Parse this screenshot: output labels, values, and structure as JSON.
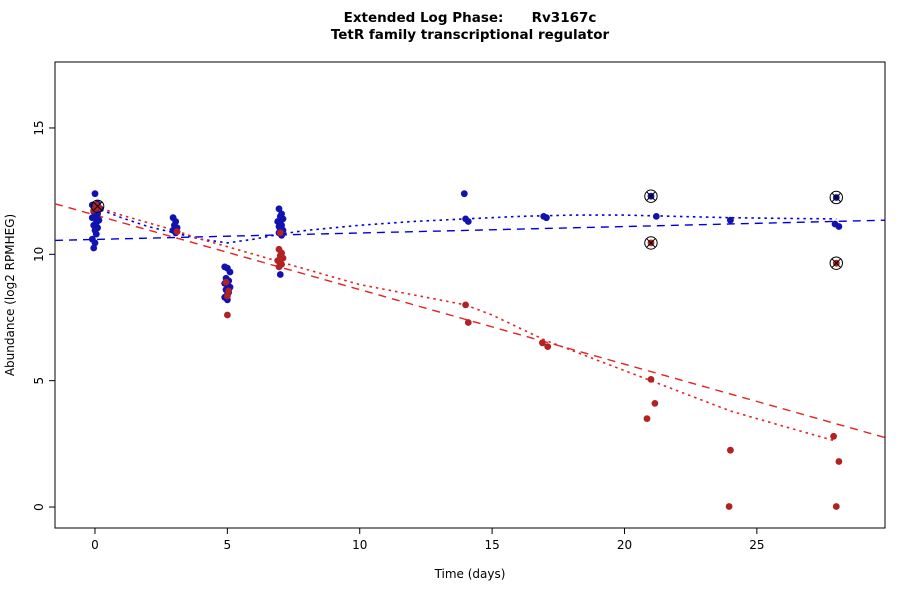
{
  "title_line1": "Extended Log Phase:      Rv3167c",
  "title_line2": "TetR family transcriptional regulator",
  "chart_data": {
    "type": "scatter",
    "title": "Extended Log Phase: Rv3167c",
    "subtitle": "TetR family transcriptional regulator",
    "xlabel": "Time  (days)",
    "ylabel": "Abundance  (log2 RPMHEG)",
    "x_ticks": [
      0,
      5,
      10,
      15,
      20,
      25
    ],
    "y_ticks": [
      0,
      5,
      10,
      15
    ],
    "x_range": [
      -1.51,
      29.84
    ],
    "y_range": [
      -0.83,
      17.61
    ],
    "grid": false,
    "legend": "none",
    "colors": {
      "blue_points": "#1212b0",
      "red_points": "#b22222",
      "blue_line": "#0000dd",
      "red_line": "#e32222"
    },
    "series": [
      {
        "name": "blue-series",
        "color": "#1212b0",
        "points": [
          [
            0.0,
            12.4
          ],
          [
            0.1,
            12.0
          ],
          [
            -0.1,
            11.95
          ],
          [
            0.05,
            11.85
          ],
          [
            0.2,
            11.8
          ],
          [
            -0.05,
            11.7
          ],
          [
            0.1,
            11.6
          ],
          [
            0.0,
            11.5
          ],
          [
            -0.1,
            11.45
          ],
          [
            0.15,
            11.35
          ],
          [
            0.05,
            11.25
          ],
          [
            -0.05,
            11.15
          ],
          [
            0.1,
            11.05
          ],
          [
            0.0,
            10.95
          ],
          [
            0.05,
            10.8
          ],
          [
            -0.1,
            10.6
          ],
          [
            0.0,
            10.45
          ],
          [
            -0.05,
            10.25
          ],
          [
            2.95,
            11.45
          ],
          [
            3.05,
            11.3
          ],
          [
            3.0,
            11.15
          ],
          [
            3.1,
            11.05
          ],
          [
            2.95,
            10.95
          ],
          [
            3.05,
            10.85
          ],
          [
            4.9,
            9.5
          ],
          [
            5.0,
            9.45
          ],
          [
            5.1,
            9.3
          ],
          [
            4.95,
            9.05
          ],
          [
            5.05,
            8.95
          ],
          [
            4.9,
            8.85
          ],
          [
            5.0,
            8.8
          ],
          [
            5.1,
            8.7
          ],
          [
            4.95,
            8.6
          ],
          [
            5.05,
            8.5
          ],
          [
            5.0,
            8.4
          ],
          [
            4.9,
            8.3
          ],
          [
            5.0,
            8.2
          ],
          [
            6.95,
            11.8
          ],
          [
            7.05,
            11.6
          ],
          [
            7.0,
            11.5
          ],
          [
            7.1,
            11.4
          ],
          [
            6.9,
            11.3
          ],
          [
            7.0,
            11.25
          ],
          [
            7.05,
            11.15
          ],
          [
            6.95,
            11.1
          ],
          [
            7.0,
            11.0
          ],
          [
            7.1,
            10.95
          ],
          [
            6.95,
            10.85
          ],
          [
            7.05,
            10.75
          ],
          [
            7.0,
            9.2
          ],
          [
            13.95,
            12.4
          ],
          [
            14.0,
            11.4
          ],
          [
            14.1,
            11.3
          ],
          [
            16.95,
            11.5
          ],
          [
            17.05,
            11.45
          ],
          [
            21.0,
            12.3
          ],
          [
            21.2,
            11.5
          ],
          [
            24.0,
            11.35
          ],
          [
            28.0,
            12.25
          ],
          [
            27.95,
            11.2
          ],
          [
            28.1,
            11.1
          ]
        ]
      },
      {
        "name": "red-series",
        "color": "#b22222",
        "points": [
          [
            0.05,
            11.95
          ],
          [
            0.15,
            11.85
          ],
          [
            -0.05,
            11.75
          ],
          [
            0.1,
            11.9
          ],
          [
            3.1,
            10.9
          ],
          [
            4.95,
            8.9
          ],
          [
            5.05,
            8.55
          ],
          [
            5.0,
            8.35
          ],
          [
            5.0,
            7.6
          ],
          [
            7.0,
            10.85
          ],
          [
            6.95,
            10.2
          ],
          [
            7.05,
            10.05
          ],
          [
            7.0,
            9.95
          ],
          [
            7.1,
            9.85
          ],
          [
            6.9,
            9.75
          ],
          [
            7.0,
            9.65
          ],
          [
            7.05,
            9.6
          ],
          [
            6.95,
            9.5
          ],
          [
            14.0,
            8.0
          ],
          [
            14.1,
            7.3
          ],
          [
            16.9,
            6.5
          ],
          [
            17.1,
            6.35
          ],
          [
            21.0,
            5.05
          ],
          [
            21.15,
            4.1
          ],
          [
            20.85,
            3.5
          ],
          [
            21.0,
            10.45
          ],
          [
            24.0,
            2.25
          ],
          [
            23.95,
            0.02
          ],
          [
            28.0,
            9.65
          ],
          [
            27.9,
            2.8
          ],
          [
            28.1,
            1.8
          ],
          [
            28.0,
            0.02
          ]
        ]
      }
    ],
    "circled_points": [
      [
        0.1,
        11.9
      ],
      [
        21.0,
        12.3
      ],
      [
        21.0,
        10.45
      ],
      [
        28.0,
        12.25
      ],
      [
        28.0,
        9.65
      ]
    ],
    "lines": [
      {
        "name": "red-lm-dashed",
        "style": "dashed",
        "color": "#e32222",
        "from": [
          -1.51,
          12.0
        ],
        "to": [
          29.84,
          2.75
        ]
      },
      {
        "name": "blue-lm-dashed",
        "style": "dashed",
        "color": "#0000dd",
        "from": [
          -1.51,
          10.55
        ],
        "to": [
          29.84,
          11.35
        ]
      },
      {
        "name": "blue-lowess-dotted",
        "style": "dotted",
        "color": "#0000dd",
        "points": [
          [
            0,
            11.85
          ],
          [
            1,
            11.45
          ],
          [
            2,
            11.1
          ],
          [
            3,
            10.85
          ],
          [
            4,
            10.6
          ],
          [
            5,
            10.45
          ],
          [
            6,
            10.6
          ],
          [
            7,
            10.8
          ],
          [
            8,
            10.95
          ],
          [
            10,
            11.15
          ],
          [
            12,
            11.3
          ],
          [
            14,
            11.4
          ],
          [
            16,
            11.5
          ],
          [
            18,
            11.55
          ],
          [
            20,
            11.55
          ],
          [
            22,
            11.5
          ],
          [
            24,
            11.45
          ],
          [
            26,
            11.42
          ],
          [
            28,
            11.4
          ]
        ]
      },
      {
        "name": "red-lowess-dotted",
        "style": "dotted",
        "color": "#e32222",
        "points": [
          [
            0,
            11.9
          ],
          [
            1,
            11.55
          ],
          [
            2,
            11.25
          ],
          [
            3,
            10.95
          ],
          [
            4,
            10.6
          ],
          [
            5,
            10.3
          ],
          [
            6,
            10.0
          ],
          [
            7,
            9.7
          ],
          [
            8,
            9.4
          ],
          [
            10,
            8.8
          ],
          [
            12,
            8.4
          ],
          [
            14,
            8.0
          ],
          [
            15,
            7.6
          ],
          [
            16,
            7.1
          ],
          [
            17,
            6.6
          ],
          [
            18,
            6.2
          ],
          [
            19,
            5.8
          ],
          [
            20,
            5.4
          ],
          [
            21,
            5.0
          ],
          [
            22,
            4.6
          ],
          [
            23,
            4.2
          ],
          [
            24,
            3.8
          ],
          [
            25,
            3.5
          ],
          [
            26,
            3.2
          ],
          [
            27,
            2.9
          ],
          [
            28,
            2.6
          ]
        ]
      }
    ]
  }
}
